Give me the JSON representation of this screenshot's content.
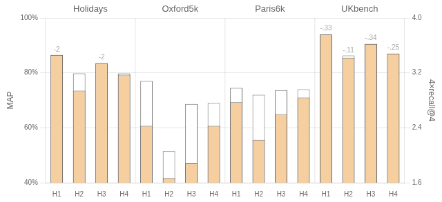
{
  "chart_data": {
    "type": "bar",
    "groups": [
      "Holidays",
      "Oxford5k",
      "Paris6k",
      "UKbench"
    ],
    "categories": [
      "H1",
      "H2",
      "H3",
      "H4",
      "H1",
      "H2",
      "H3",
      "H4",
      "H1",
      "H2",
      "H3",
      "H4",
      "H1",
      "H2",
      "H3",
      "H4"
    ],
    "series": [
      {
        "color": "#F5CFA0",
        "values": [
          0.865,
          0.735,
          0.835,
          0.793,
          0.607,
          0.417,
          0.47,
          0.607,
          0.693,
          0.556,
          0.65,
          0.71,
          0.94,
          0.855,
          0.905,
          0.87
        ]
      },
      {
        "color": "#ffffff",
        "values": [
          0.865,
          0.798,
          0.835,
          0.798,
          0.77,
          0.515,
          0.687,
          0.69,
          0.745,
          0.72,
          0.737,
          0.74,
          0.94,
          0.863,
          0.905,
          0.87
        ]
      }
    ],
    "y_label": "MAP",
    "y2_label": "4×recall@4",
    "ylim": [
      0.4,
      1.0
    ],
    "yticks": [
      {
        "value": 0.4,
        "label": "40%"
      },
      {
        "value": 0.6,
        "label": "60%"
      },
      {
        "value": 0.8,
        "label": "80%"
      },
      {
        "value": 1.0,
        "label": "100%"
      }
    ],
    "y2lim": [
      1.6,
      4.0
    ],
    "y2ticks": [
      1.6,
      2.4,
      3.2,
      {
        "value": 4.0,
        "label": "4.0"
      }
    ],
    "grid": "y",
    "annotations": [
      {
        "group": "Holidays",
        "category": "H1",
        "text": "-2",
        "y": 0.872,
        "color": "#aaaaaa"
      },
      {
        "group": "Holidays",
        "category": "H3",
        "text": "-2",
        "y": 0.843,
        "color": "#aaaaaa"
      },
      {
        "group": "UKbench",
        "category": "H1",
        "text": "-.33",
        "y": 0.948,
        "color": "#aaaaaa"
      },
      {
        "group": "UKbench",
        "category": "H2",
        "text": "-.11",
        "y": 0.87,
        "color": "#aaaaaa"
      },
      {
        "group": "UKbench",
        "category": "H3",
        "text": "-.34",
        "y": 0.913,
        "color": "#aaaaaa"
      },
      {
        "group": "UKbench",
        "category": "H4",
        "text": "-.25",
        "y": 0.878,
        "color": "#aaaaaa"
      }
    ]
  }
}
